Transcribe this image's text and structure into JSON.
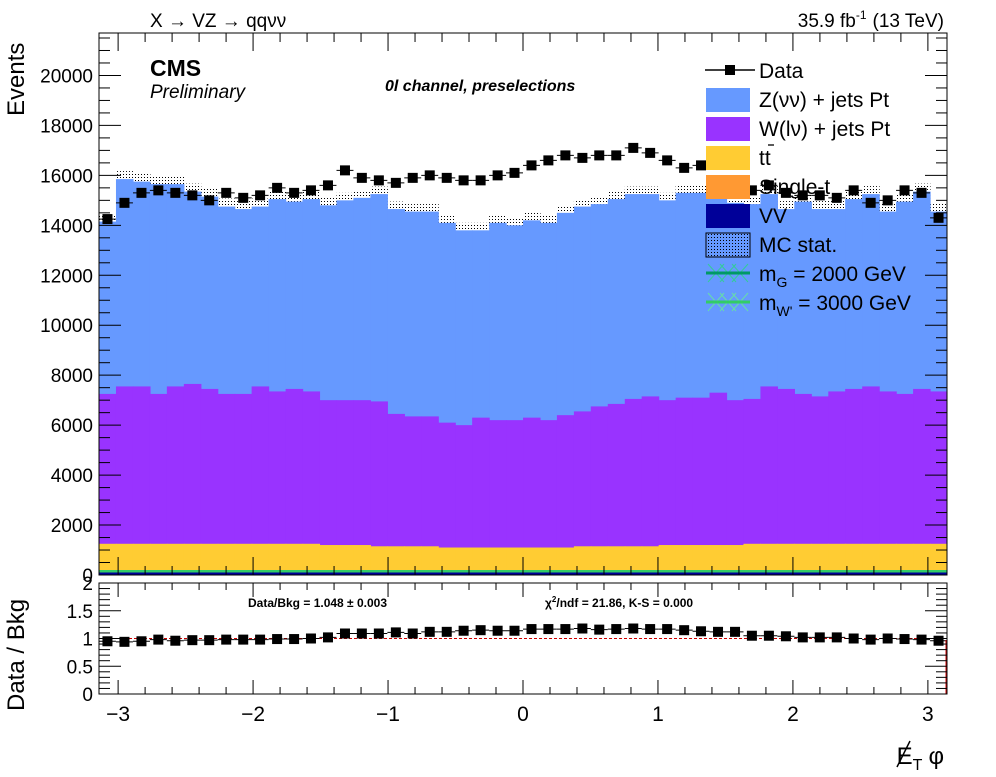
{
  "header": {
    "process": "X → VZ → qqνν",
    "lumi_value": "35.9 fb",
    "lumi_exp": "-1",
    "energy": "(13 TeV)"
  },
  "labels": {
    "cms": "CMS",
    "preliminary": "Preliminary",
    "channel": "0l channel, preselections",
    "stats_ratio": "Data/Bkg = 1.048 ± 0.003",
    "stats_chi2_chi": "χ",
    "stats_chi2_exp": "2",
    "stats_chi2_rest": "/ndf = 21.86,   K-S = 0.000"
  },
  "legend": {
    "data": "Data",
    "znn": "Z(νν) + jets Pt",
    "wln": "W(lν) + jets Pt",
    "ttbar": "tt",
    "single_t": "Single-t",
    "vv": "VV",
    "mc_stat": "MC stat.",
    "mg_pre": "m",
    "mg_sub": "G",
    "mg_post": " = 2000 GeV",
    "mw_pre": "m",
    "mw_sub": "W'",
    "mw_post": " = 3000 GeV"
  },
  "colors": {
    "znn": "#6699ff",
    "wln": "#9933ff",
    "ttbar": "#ffcc33",
    "single_t": "#ff9933",
    "vv": "#000099",
    "sig_g": "#009966",
    "sig_w": "#33cc66",
    "ratio_ref": "#cc0000"
  },
  "chart_data": [
    {
      "type": "bar",
      "title": "",
      "xlabel": "E̸T φ",
      "ylabel": "Events",
      "xlim": [
        -3.1416,
        3.1416
      ],
      "ylim": [
        0,
        21700
      ],
      "y_ticks": [
        0,
        2000,
        4000,
        6000,
        8000,
        10000,
        12000,
        14000,
        16000,
        18000,
        20000
      ],
      "x_bin_centers": [
        -3.079,
        -2.953,
        -2.827,
        -2.702,
        -2.576,
        -2.45,
        -2.325,
        -2.199,
        -2.073,
        -1.948,
        -1.822,
        -1.696,
        -1.571,
        -1.445,
        -1.319,
        -1.194,
        -1.068,
        -0.942,
        -0.817,
        -0.691,
        -0.565,
        -0.44,
        -0.314,
        -0.188,
        -0.063,
        0.063,
        0.188,
        0.314,
        0.44,
        0.565,
        0.691,
        0.817,
        0.942,
        1.068,
        1.194,
        1.319,
        1.445,
        1.571,
        1.696,
        1.822,
        1.948,
        2.073,
        2.199,
        2.325,
        2.45,
        2.576,
        2.702,
        2.827,
        2.953,
        3.079
      ],
      "series": [
        {
          "name": "Data",
          "values": [
            14250,
            14900,
            15300,
            15400,
            15300,
            15200,
            15000,
            15300,
            15100,
            15200,
            15500,
            15300,
            15400,
            15600,
            16200,
            15900,
            15800,
            15700,
            15900,
            16000,
            15900,
            15800,
            15800,
            16000,
            16100,
            16400,
            16600,
            16800,
            16700,
            16800,
            16800,
            17100,
            16900,
            16600,
            16300,
            16400,
            15700,
            15600,
            15400,
            15600,
            15300,
            15200,
            15200,
            15100,
            15400,
            14900,
            15000,
            15400,
            15300,
            14300
          ]
        },
        {
          "name": "Z(νν) + jets Pt",
          "values": [
            6900,
            8300,
            8200,
            8400,
            8100,
            7700,
            7700,
            7500,
            7400,
            7200,
            7700,
            7500,
            7700,
            7800,
            8000,
            8100,
            8300,
            8200,
            8200,
            8200,
            8000,
            7800,
            7500,
            7900,
            7800,
            7900,
            7900,
            8100,
            8200,
            8100,
            8200,
            8200,
            8100,
            8000,
            8200,
            8200,
            8200,
            7900,
            7800,
            7700,
            7200,
            7700,
            7500,
            7300,
            7600,
            7700,
            7200,
            7700,
            7900,
            7200
          ]
        },
        {
          "name": "W(lν) + jets Pt",
          "values": [
            6000,
            6300,
            6300,
            6000,
            6300,
            6400,
            6200,
            6000,
            6000,
            6300,
            6100,
            6200,
            6100,
            5800,
            5800,
            5800,
            5800,
            5300,
            5200,
            5200,
            5000,
            4900,
            5200,
            5100,
            5100,
            5200,
            5100,
            5300,
            5400,
            5600,
            5700,
            5900,
            6000,
            5800,
            5900,
            5900,
            6100,
            5800,
            5800,
            6300,
            6200,
            6000,
            5900,
            6100,
            6200,
            6300,
            6100,
            6000,
            6200,
            6100
          ]
        },
        {
          "name": "tt",
          "values": [
            1050,
            1050,
            1050,
            1050,
            1050,
            1050,
            1050,
            1050,
            1050,
            1050,
            1050,
            1050,
            1050,
            1000,
            1000,
            1000,
            950,
            950,
            950,
            950,
            900,
            900,
            900,
            900,
            900,
            900,
            900,
            900,
            950,
            950,
            950,
            950,
            950,
            1000,
            1000,
            1000,
            1000,
            1000,
            1050,
            1050,
            1050,
            1050,
            1050,
            1050,
            1050,
            1050,
            1050,
            1050,
            1050,
            1050
          ]
        },
        {
          "name": "Single-t",
          "values": [
            100,
            100,
            100,
            100,
            100,
            100,
            100,
            100,
            100,
            100,
            100,
            100,
            100,
            100,
            100,
            100,
            100,
            100,
            100,
            100,
            100,
            100,
            100,
            100,
            100,
            100,
            100,
            100,
            100,
            100,
            100,
            100,
            100,
            100,
            100,
            100,
            100,
            100,
            100,
            100,
            100,
            100,
            100,
            100,
            100,
            100,
            100,
            100,
            100,
            100
          ]
        },
        {
          "name": "VV",
          "values": [
            100,
            100,
            100,
            100,
            100,
            100,
            100,
            100,
            100,
            100,
            100,
            100,
            100,
            100,
            100,
            100,
            100,
            100,
            100,
            100,
            100,
            100,
            100,
            100,
            100,
            100,
            100,
            100,
            100,
            100,
            100,
            100,
            100,
            100,
            100,
            100,
            100,
            100,
            100,
            100,
            100,
            100,
            100,
            100,
            100,
            100,
            100,
            100,
            100,
            100
          ]
        },
        {
          "name": "m_G = 2000 GeV",
          "values": [
            150,
            150,
            150,
            150,
            150,
            150,
            150,
            150,
            150,
            150,
            150,
            150,
            150,
            150,
            150,
            150,
            150,
            150,
            150,
            150,
            150,
            150,
            150,
            150,
            150,
            150,
            150,
            150,
            150,
            150,
            150,
            150,
            150,
            150,
            150,
            150,
            150,
            150,
            150,
            150,
            150,
            150,
            150,
            150,
            150,
            150,
            150,
            150,
            150,
            150
          ]
        },
        {
          "name": "m_W' = 3000 GeV",
          "values": [
            150,
            150,
            150,
            150,
            150,
            150,
            150,
            150,
            150,
            150,
            150,
            150,
            150,
            150,
            150,
            150,
            150,
            150,
            150,
            150,
            150,
            150,
            150,
            150,
            150,
            150,
            150,
            150,
            150,
            150,
            150,
            150,
            150,
            150,
            150,
            150,
            150,
            150,
            150,
            150,
            150,
            150,
            150,
            150,
            150,
            150,
            150,
            150,
            150,
            150
          ]
        }
      ],
      "mc_stat_uncertainty": [
        300,
        320,
        320,
        320,
        320,
        320,
        320,
        320,
        320,
        320,
        320,
        320,
        320,
        300,
        300,
        300,
        300,
        300,
        300,
        300,
        300,
        300,
        300,
        300,
        300,
        300,
        300,
        300,
        300,
        300,
        300,
        300,
        300,
        300,
        300,
        300,
        300,
        300,
        300,
        320,
        320,
        320,
        320,
        320,
        320,
        320,
        320,
        320,
        320,
        320
      ],
      "legend_position": "top-right",
      "grid": false
    },
    {
      "type": "scatter",
      "title": "",
      "xlabel": "E̸T φ",
      "ylabel": "Data / Bkg",
      "xlim": [
        -3.1416,
        3.1416
      ],
      "ylim": [
        0,
        2
      ],
      "y_ticks": [
        "0",
        "0.5",
        "1",
        "1.5",
        "2"
      ],
      "x_ticks": [
        "−3",
        "−2",
        "−1",
        "0",
        "1",
        "2",
        "3"
      ],
      "x_tick_values": [
        -3,
        -2,
        -1,
        0,
        1,
        2,
        3
      ],
      "reference_line": 1,
      "series": [
        {
          "name": "Data",
          "values": [
            0.95,
            0.94,
            0.95,
            0.98,
            0.96,
            0.97,
            0.97,
            0.98,
            0.98,
            0.98,
            0.99,
            0.99,
            1.0,
            1.02,
            1.09,
            1.09,
            1.09,
            1.11,
            1.09,
            1.12,
            1.12,
            1.14,
            1.15,
            1.14,
            1.14,
            1.17,
            1.17,
            1.17,
            1.18,
            1.16,
            1.17,
            1.18,
            1.17,
            1.17,
            1.15,
            1.13,
            1.12,
            1.12,
            1.05,
            1.05,
            1.04,
            1.02,
            1.02,
            1.02,
            1.0,
            0.98,
            1.0,
            0.99,
            0.98,
            0.96
          ]
        }
      ],
      "grid": false
    }
  ]
}
